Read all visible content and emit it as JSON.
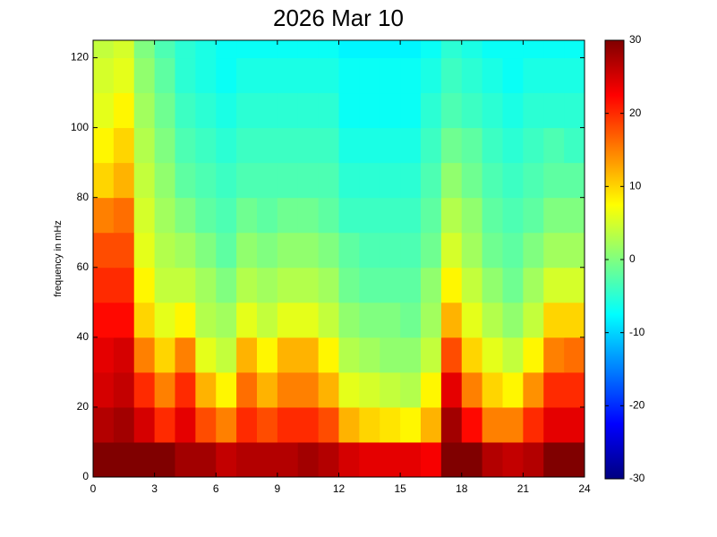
{
  "chart_data": {
    "type": "heatmap",
    "title": "2026 Mar 10",
    "y_label": "frequency in mHz",
    "colormap": "jet",
    "x_edges": [
      0,
      1,
      2,
      3,
      4,
      5,
      6,
      7,
      8,
      9,
      10,
      11,
      12,
      13,
      14,
      15,
      16,
      17,
      18,
      19,
      20,
      21,
      22,
      23,
      24
    ],
    "y_edges": [
      0,
      10,
      20,
      30,
      40,
      50,
      60,
      70,
      80,
      90,
      100,
      110,
      120,
      125
    ],
    "z": [
      [
        30,
        30,
        30,
        30,
        28,
        28,
        26,
        27,
        27,
        27,
        28,
        27,
        25,
        24,
        24,
        24,
        23,
        30,
        30,
        27,
        26,
        27,
        30,
        30
      ],
      [
        27,
        28,
        25,
        20,
        24,
        18,
        15,
        20,
        18,
        20,
        20,
        18,
        12,
        10,
        9,
        8,
        12,
        28,
        22,
        15,
        15,
        20,
        24,
        24
      ],
      [
        25,
        26,
        20,
        15,
        20,
        12,
        8,
        16,
        12,
        15,
        15,
        12,
        6,
        5,
        4,
        3,
        8,
        24,
        15,
        10,
        8,
        14,
        20,
        20
      ],
      [
        24,
        25,
        15,
        10,
        15,
        6,
        4,
        12,
        8,
        12,
        12,
        8,
        3,
        2,
        1,
        1,
        4,
        18,
        10,
        6,
        4,
        8,
        15,
        16
      ],
      [
        22,
        22,
        10,
        6,
        8,
        3,
        2,
        6,
        4,
        6,
        6,
        4,
        1,
        0,
        0,
        -1,
        2,
        12,
        6,
        3,
        1,
        4,
        10,
        10
      ],
      [
        20,
        20,
        8,
        4,
        4,
        2,
        0,
        3,
        2,
        3,
        3,
        2,
        -1,
        -2,
        -2,
        -2,
        1,
        8,
        4,
        1,
        -1,
        2,
        5,
        5
      ],
      [
        18,
        18,
        6,
        3,
        2,
        0,
        -2,
        1,
        0,
        1,
        1,
        0,
        -2,
        -3,
        -3,
        -3,
        -1,
        5,
        2,
        -1,
        -2,
        0,
        2,
        2
      ],
      [
        15,
        16,
        5,
        2,
        0,
        -2,
        -3,
        -1,
        -2,
        -1,
        -1,
        -2,
        -4,
        -4,
        -4,
        -4,
        -2,
        3,
        1,
        -2,
        -3,
        -2,
        0,
        0
      ],
      [
        10,
        12,
        4,
        1,
        -2,
        -3,
        -4,
        -3,
        -3,
        -3,
        -3,
        -3,
        -5,
        -5,
        -5,
        -5,
        -3,
        1,
        -1,
        -3,
        -4,
        -3,
        -2,
        -2
      ],
      [
        8,
        10,
        3,
        0,
        -3,
        -4,
        -5,
        -4,
        -4,
        -4,
        -4,
        -4,
        -6,
        -6,
        -6,
        -6,
        -4,
        -1,
        -2,
        -4,
        -5,
        -4,
        -3,
        -4
      ],
      [
        6,
        8,
        2,
        -1,
        -4,
        -5,
        -6,
        -5,
        -5,
        -5,
        -5,
        -5,
        -7,
        -7,
        -7,
        -7,
        -5,
        -3,
        -4,
        -5,
        -6,
        -5,
        -5,
        -5
      ],
      [
        5,
        6,
        1,
        -2,
        -5,
        -6,
        -7,
        -6,
        -6,
        -6,
        -6,
        -6,
        -7,
        -7,
        -7,
        -7,
        -6,
        -4,
        -5,
        -6,
        -7,
        -6,
        -6,
        -6
      ],
      [
        4,
        5,
        0,
        -3,
        -5,
        -6,
        -7,
        -7,
        -7,
        -7,
        -7,
        -7,
        -8,
        -8,
        -8,
        -8,
        -7,
        -5,
        -6,
        -7,
        -7,
        -7,
        -7,
        -7
      ]
    ],
    "xlim": [
      0,
      24
    ],
    "xticks": [
      0,
      3,
      6,
      9,
      12,
      15,
      18,
      21,
      24
    ],
    "ylim": [
      0,
      125
    ],
    "yticks": [
      0,
      20,
      40,
      60,
      80,
      100,
      120
    ],
    "clim": [
      -30,
      30
    ],
    "cticks": [
      -30,
      -20,
      -10,
      0,
      10,
      20,
      30
    ]
  }
}
